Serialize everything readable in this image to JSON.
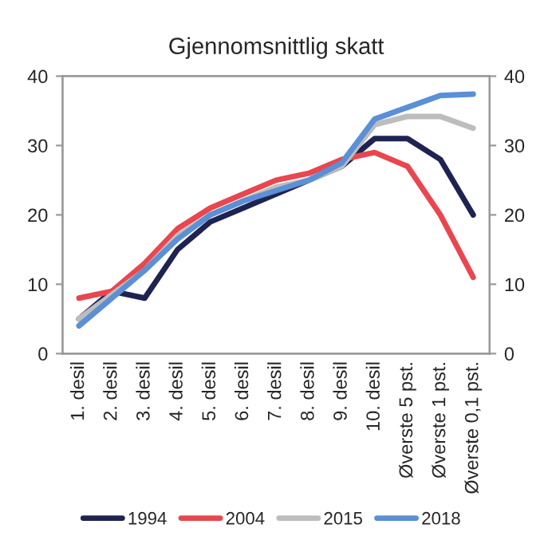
{
  "chart_data": {
    "type": "line",
    "title": "Gjennomsnittlig skatt",
    "categories": [
      "1. desil",
      "2. desil",
      "3. desil",
      "4. desil",
      "5. desil",
      "6. desil",
      "7. desil",
      "8. desil",
      "9. desil",
      "10. desil",
      "Øverste 5 pst.",
      "Øverste 1 pst.",
      "Øverste 0,1 pst."
    ],
    "series": [
      {
        "name": "1994",
        "color": "#1f2351",
        "values": [
          5,
          9,
          8,
          15,
          19,
          21,
          23,
          25,
          27,
          31,
          31,
          28,
          20
        ]
      },
      {
        "name": "2004",
        "color": "#e8474f",
        "values": [
          8,
          9,
          13,
          18,
          21,
          23,
          25,
          26,
          28,
          29,
          27,
          20,
          11
        ]
      },
      {
        "name": "2015",
        "color": "#bdbdbd",
        "values": [
          5,
          8.5,
          12,
          17,
          20,
          22,
          24,
          25,
          27,
          33,
          34.2,
          34.2,
          32.5
        ]
      },
      {
        "name": "2018",
        "color": "#5b8fd6",
        "values": [
          4,
          8,
          12,
          16.5,
          20,
          22,
          23.5,
          25,
          27.5,
          33.8,
          35.5,
          37.2,
          37.4
        ]
      }
    ],
    "ylim": [
      0,
      40
    ],
    "yticks": [
      0,
      10,
      20,
      30,
      40
    ],
    "y2lim": [
      0,
      40
    ],
    "y2ticks": [
      0,
      10,
      20,
      30,
      40
    ],
    "grid": false,
    "legend": "bottom",
    "marker": "none",
    "line_style": "solid"
  }
}
